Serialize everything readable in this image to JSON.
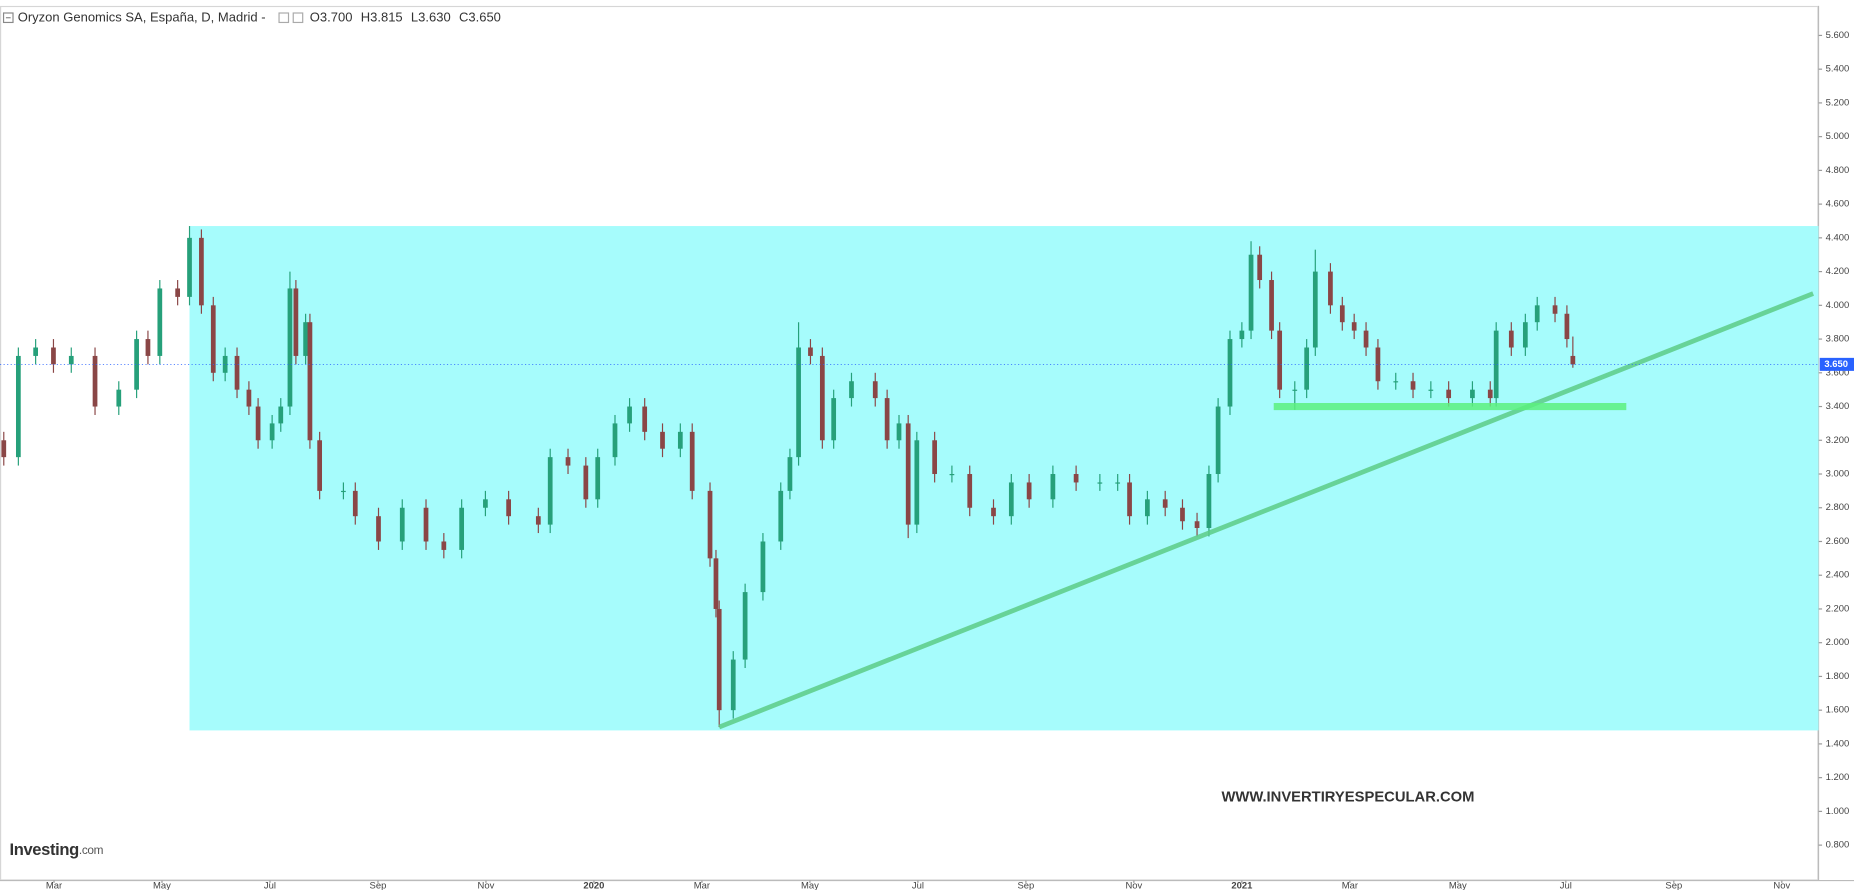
{
  "chart_data": {
    "type": "candlestick",
    "title": "Oryzon Genomics SA, España, D, Madrid",
    "ohlc_legend": [
      "O3.700",
      "H3.815",
      "L3.630",
      "C3.650"
    ],
    "x": [
      -10.93,
      -10.66,
      -10.34,
      -10.01,
      -9.68,
      -9.24,
      -8.8,
      -8.47,
      -8.26,
      -8.04,
      -7.71,
      -7.49,
      -7.27,
      -7.05,
      -6.83,
      -6.61,
      -6.39,
      -6.22,
      -5.96,
      -5.8,
      -5.63,
      -5.52,
      -5.34,
      -5.26,
      -5.08,
      -4.64,
      -4.42,
      -3.99,
      -3.55,
      -3.11,
      -2.78,
      -2.45,
      -2.01,
      -1.58,
      -1.03,
      -0.81,
      -0.48,
      -0.15,
      0.07,
      0.39,
      0.66,
      0.94,
      1.27,
      1.6,
      1.82,
      2.15,
      2.26,
      2.32,
      2.58,
      2.8,
      3.13,
      3.46,
      3.63,
      3.79,
      4.01,
      4.23,
      4.44,
      4.77,
      5.21,
      5.43,
      5.65,
      5.82,
      5.98,
      6.31,
      6.63,
      6.96,
      7.4,
      7.73,
      8.06,
      8.5,
      8.93,
      9.37,
      9.7,
      9.92,
      10.25,
      10.58,
      10.9,
      11.17,
      11.39,
      11.56,
      11.78,
      12.0,
      12.17,
      12.33,
      12.55,
      12.7,
      12.98,
      13.2,
      13.36,
      13.64,
      13.86,
      14.08,
      14.3,
      14.52,
      14.85,
      15.17,
      15.5,
      15.83,
      16.27,
      16.6,
      16.71,
      16.99,
      17.25,
      17.47,
      17.8,
      18.02,
      18.13
    ],
    "open": [
      3.2,
      3.1,
      3.7,
      3.75,
      3.65,
      3.7,
      3.4,
      3.5,
      3.8,
      3.7,
      4.1,
      4.05,
      4.4,
      4.0,
      3.6,
      3.7,
      3.5,
      3.4,
      3.2,
      3.3,
      3.4,
      4.1,
      3.7,
      3.9,
      3.2,
      2.9,
      2.9,
      2.75,
      2.6,
      2.8,
      2.6,
      2.55,
      2.8,
      2.85,
      2.75,
      2.7,
      3.1,
      3.05,
      2.85,
      3.1,
      3.3,
      3.4,
      3.25,
      3.15,
      3.25,
      2.9,
      2.5,
      2.2,
      1.6,
      1.9,
      2.3,
      2.6,
      2.9,
      3.1,
      3.75,
      3.7,
      3.2,
      3.45,
      3.55,
      3.45,
      3.2,
      3.3,
      2.7,
      3.2,
      3.0,
      3.0,
      2.8,
      2.75,
      2.95,
      2.85,
      3.0,
      2.95,
      2.95,
      2.95,
      2.75,
      2.85,
      2.8,
      2.72,
      2.68,
      3.0,
      3.4,
      3.8,
      3.85,
      4.3,
      4.15,
      3.85,
      3.5,
      3.5,
      3.75,
      4.2,
      4.0,
      3.9,
      3.85,
      3.75,
      3.55,
      3.55,
      3.5,
      3.5,
      3.45,
      3.5,
      3.45,
      3.85,
      3.75,
      3.9,
      4.0,
      3.95,
      3.7
    ],
    "high": [
      3.25,
      3.75,
      3.8,
      3.8,
      3.75,
      3.75,
      3.55,
      3.85,
      3.85,
      4.15,
      4.15,
      4.47,
      4.45,
      4.05,
      3.75,
      3.75,
      3.55,
      3.45,
      3.35,
      3.45,
      4.2,
      4.15,
      3.95,
      3.95,
      3.25,
      2.95,
      2.95,
      2.8,
      2.85,
      2.85,
      2.65,
      2.85,
      2.9,
      2.9,
      2.8,
      3.15,
      3.15,
      3.1,
      3.15,
      3.35,
      3.45,
      3.45,
      3.3,
      3.3,
      3.3,
      2.95,
      2.55,
      2.25,
      1.95,
      2.35,
      2.65,
      2.95,
      3.15,
      3.9,
      3.8,
      3.75,
      3.5,
      3.6,
      3.6,
      3.5,
      3.35,
      3.35,
      3.25,
      3.25,
      3.05,
      3.05,
      2.85,
      3.0,
      3.0,
      3.05,
      3.05,
      3.0,
      3.0,
      3.0,
      2.9,
      2.9,
      2.85,
      2.77,
      3.05,
      3.45,
      3.85,
      3.9,
      4.38,
      4.35,
      4.2,
      3.9,
      3.55,
      3.8,
      4.33,
      4.25,
      4.05,
      3.95,
      3.9,
      3.8,
      3.6,
      3.6,
      3.55,
      3.55,
      3.55,
      3.55,
      3.9,
      3.9,
      3.95,
      4.05,
      4.05,
      4.0,
      3.815
    ],
    "low": [
      3.05,
      3.05,
      3.65,
      3.6,
      3.6,
      3.35,
      3.35,
      3.45,
      3.65,
      3.65,
      4.0,
      4.0,
      3.95,
      3.55,
      3.55,
      3.45,
      3.35,
      3.15,
      3.15,
      3.25,
      3.35,
      3.65,
      3.65,
      3.15,
      2.85,
      2.85,
      2.7,
      2.55,
      2.55,
      2.55,
      2.5,
      2.5,
      2.75,
      2.7,
      2.65,
      2.65,
      3.0,
      2.8,
      2.8,
      3.05,
      3.25,
      3.2,
      3.1,
      3.1,
      2.85,
      2.45,
      2.15,
      1.5,
      1.55,
      1.85,
      2.25,
      2.55,
      2.85,
      3.05,
      3.65,
      3.15,
      3.15,
      3.4,
      3.4,
      3.15,
      3.15,
      2.62,
      2.65,
      2.95,
      2.95,
      2.75,
      2.7,
      2.7,
      2.8,
      2.8,
      2.9,
      2.9,
      2.9,
      2.7,
      2.7,
      2.75,
      2.67,
      2.63,
      2.63,
      2.95,
      3.35,
      3.75,
      3.8,
      4.1,
      3.8,
      3.45,
      3.38,
      3.45,
      3.7,
      3.95,
      3.85,
      3.8,
      3.7,
      3.5,
      3.5,
      3.45,
      3.45,
      3.4,
      3.4,
      3.4,
      3.4,
      3.7,
      3.7,
      3.85,
      3.9,
      3.75,
      3.63
    ],
    "close": [
      3.1,
      3.7,
      3.75,
      3.65,
      3.7,
      3.4,
      3.5,
      3.8,
      3.7,
      4.1,
      4.05,
      4.4,
      4.0,
      3.6,
      3.7,
      3.5,
      3.4,
      3.2,
      3.3,
      3.4,
      4.1,
      3.7,
      3.9,
      3.2,
      2.9,
      2.9,
      2.75,
      2.6,
      2.8,
      2.6,
      2.55,
      2.8,
      2.85,
      2.75,
      2.7,
      3.1,
      3.05,
      2.85,
      3.1,
      3.3,
      3.4,
      3.25,
      3.15,
      3.25,
      2.9,
      2.5,
      2.2,
      1.6,
      1.9,
      2.3,
      2.6,
      2.9,
      3.1,
      3.75,
      3.7,
      3.2,
      3.45,
      3.55,
      3.45,
      3.2,
      3.3,
      2.7,
      3.2,
      3.0,
      3.0,
      2.8,
      2.75,
      2.95,
      2.85,
      3.0,
      2.95,
      2.95,
      2.95,
      2.75,
      2.85,
      2.8,
      2.72,
      2.68,
      3.0,
      3.4,
      3.8,
      3.85,
      4.3,
      4.15,
      3.85,
      3.5,
      3.5,
      3.75,
      4.2,
      4.0,
      3.9,
      3.85,
      3.75,
      3.55,
      3.55,
      3.5,
      3.5,
      3.45,
      3.5,
      3.45,
      3.85,
      3.75,
      3.9,
      4.0,
      3.95,
      3.8,
      3.65
    ],
    "up_color": "#26a07a",
    "down_color": "#8a4646",
    "xlim": [
      -11,
      22.68
    ],
    "ylim": [
      0.59,
      5.775
    ],
    "xticks": [
      {
        "value": -10,
        "label": "Mar"
      },
      {
        "value": -8,
        "label": "May"
      },
      {
        "value": -6,
        "label": "Jul"
      },
      {
        "value": -4,
        "label": "Sep"
      },
      {
        "value": -2,
        "label": "Nov"
      },
      {
        "value": 0,
        "label": "2020"
      },
      {
        "value": 2,
        "label": "Mar"
      },
      {
        "value": 4,
        "label": "May"
      },
      {
        "value": 6,
        "label": "Jul"
      },
      {
        "value": 8,
        "label": "Sep"
      },
      {
        "value": 10,
        "label": "Nov"
      },
      {
        "value": 12,
        "label": "2021"
      },
      {
        "value": 14,
        "label": "Mar"
      },
      {
        "value": 16,
        "label": "May"
      },
      {
        "value": 18,
        "label": "Jul"
      },
      {
        "value": 20,
        "label": "Sep"
      },
      {
        "value": 22,
        "label": "Nov"
      }
    ],
    "yticks": [
      {
        "value": 0.8,
        "label": "0.800"
      },
      {
        "value": 1.0,
        "label": "1.000"
      },
      {
        "value": 1.2,
        "label": "1.200"
      },
      {
        "value": 1.4,
        "label": "1.400"
      },
      {
        "value": 1.6,
        "label": "1.600"
      },
      {
        "value": 1.8,
        "label": "1.800"
      },
      {
        "value": 2.0,
        "label": "2.000"
      },
      {
        "value": 2.2,
        "label": "2.200"
      },
      {
        "value": 2.4,
        "label": "2.400"
      },
      {
        "value": 2.6,
        "label": "2.600"
      },
      {
        "value": 2.8,
        "label": "2.800"
      },
      {
        "value": 3.0,
        "label": "3.000"
      },
      {
        "value": 3.2,
        "label": "3.200"
      },
      {
        "value": 3.4,
        "label": "3.400"
      },
      {
        "value": 3.6,
        "label": "3.600"
      },
      {
        "value": 3.8,
        "label": "3.800"
      },
      {
        "value": 4.0,
        "label": "4.000"
      },
      {
        "value": 4.2,
        "label": "4.200"
      },
      {
        "value": 4.4,
        "label": "4.400"
      },
      {
        "value": 4.6,
        "label": "4.600"
      },
      {
        "value": 4.8,
        "label": "4.800"
      },
      {
        "value": 5.0,
        "label": "5.000"
      },
      {
        "value": 5.2,
        "label": "5.200"
      },
      {
        "value": 5.4,
        "label": "5.400"
      },
      {
        "value": 5.6,
        "label": "5.600"
      }
    ],
    "grid": false,
    "last_price": {
      "value": 3.65,
      "label": "3.650",
      "color": "#2962ff"
    },
    "box": {
      "x": [
        -7.49,
        22.68
      ],
      "y": [
        1.48,
        4.47
      ],
      "color": "#a6fcfc"
    },
    "trendline": {
      "x": [
        2.32,
        22.58
      ],
      "y": [
        1.5,
        4.07
      ],
      "color": "#5ccb86"
    },
    "support": {
      "x": [
        12.59,
        19.12
      ],
      "y": [
        3.4,
        3.4
      ],
      "color": "#5cf07e"
    }
  },
  "watermark": "WWW.INVERTIRYESPECULAR.COM",
  "logo": {
    "brand": "Investing",
    "suffix": ".com"
  }
}
